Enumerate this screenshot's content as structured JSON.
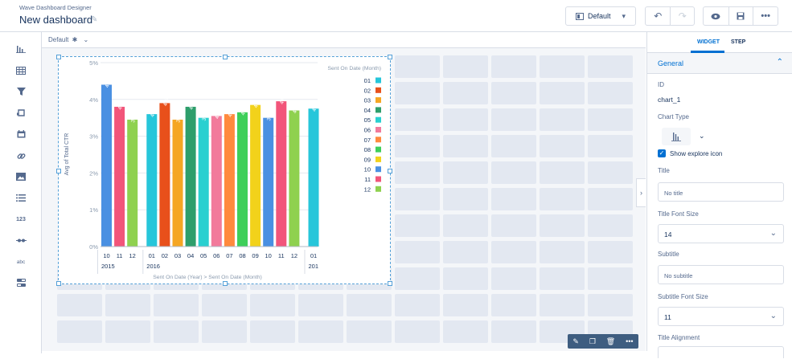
{
  "header": {
    "app_name": "Wave Dashboard Designer",
    "dashboard_title": "New dashboard",
    "layout_select": "Default"
  },
  "canvas": {
    "layout_label": "Default"
  },
  "rail_icons": [
    "chart-icon",
    "table-icon",
    "filter-icon",
    "compare-table-icon",
    "date-icon",
    "link-icon",
    "image-icon",
    "list-icon",
    "number-icon",
    "range-icon",
    "text-icon",
    "toggle-icon"
  ],
  "rail_glyphs": {
    "number": "123",
    "text": "abc"
  },
  "chart_data": {
    "type": "bar",
    "ylabel": "Avg of Total CTR",
    "xlabel": "Sent On Date (Year) > Sent On Date (Month)",
    "legend_title": "Sent On Date (Month)",
    "legend_position": "right",
    "yticks": [
      "5%",
      "4%",
      "3%",
      "2%",
      "1%",
      "0%"
    ],
    "ylim": [
      0,
      5
    ],
    "grid": true,
    "bars": [
      {
        "month": "10",
        "year": "2015",
        "value": 4.4,
        "label": "4%"
      },
      {
        "month": "11",
        "year": "2015",
        "value": 3.8,
        "label": "4%"
      },
      {
        "month": "12",
        "year": "2015",
        "value": 3.45,
        "label": "3%"
      },
      {
        "month": "01",
        "year": "2016",
        "value": 3.6,
        "label": "4%"
      },
      {
        "month": "02",
        "year": "2016",
        "value": 3.9,
        "label": "4%"
      },
      {
        "month": "03",
        "year": "2016",
        "value": 3.45,
        "label": "3%"
      },
      {
        "month": "04",
        "year": "2016",
        "value": 3.8,
        "label": "4%"
      },
      {
        "month": "05",
        "year": "2016",
        "value": 3.5,
        "label": "3%"
      },
      {
        "month": "06",
        "year": "2016",
        "value": 3.55,
        "label": "4%"
      },
      {
        "month": "07",
        "year": "2016",
        "value": 3.6,
        "label": "4%"
      },
      {
        "month": "08",
        "year": "2016",
        "value": 3.65,
        "label": "4%"
      },
      {
        "month": "09",
        "year": "2016",
        "value": 3.85,
        "label": "4%"
      },
      {
        "month": "10",
        "year": "2016",
        "value": 3.5,
        "label": "3%"
      },
      {
        "month": "11",
        "year": "2016",
        "value": 3.95,
        "label": "4%"
      },
      {
        "month": "12",
        "year": "2016",
        "value": 3.7,
        "label": "4%"
      },
      {
        "month": "01",
        "year": "201",
        "value": 3.75,
        "label": "4%"
      }
    ],
    "year_labels": [
      "2015",
      "2016",
      "201"
    ],
    "legend": [
      {
        "name": "01",
        "color": "#26c6da"
      },
      {
        "name": "02",
        "color": "#e8501b"
      },
      {
        "name": "03",
        "color": "#f5a623"
      },
      {
        "name": "04",
        "color": "#2e9e6b"
      },
      {
        "name": "05",
        "color": "#2ad0d0"
      },
      {
        "name": "06",
        "color": "#f27a9b"
      },
      {
        "name": "07",
        "color": "#ff8a3d"
      },
      {
        "name": "08",
        "color": "#3ecf5a"
      },
      {
        "name": "09",
        "color": "#f2d21b"
      },
      {
        "name": "10",
        "color": "#4a90e2"
      },
      {
        "name": "11",
        "color": "#f2557a"
      },
      {
        "name": "12",
        "color": "#8fd14f"
      }
    ]
  },
  "panel": {
    "tabs": [
      "WIDGET",
      "STEP"
    ],
    "section": "General",
    "id_label": "ID",
    "id_value": "chart_1",
    "chart_type_label": "Chart Type",
    "explore_label": "Show explore icon",
    "title_label": "Title",
    "title_placeholder": "No title",
    "title_font_label": "Title Font Size",
    "title_font_value": "14",
    "subtitle_label": "Subtitle",
    "subtitle_placeholder": "No subtitle",
    "subtitle_font_label": "Subtitle Font Size",
    "subtitle_font_value": "11",
    "title_align_label": "Title Alignment"
  }
}
